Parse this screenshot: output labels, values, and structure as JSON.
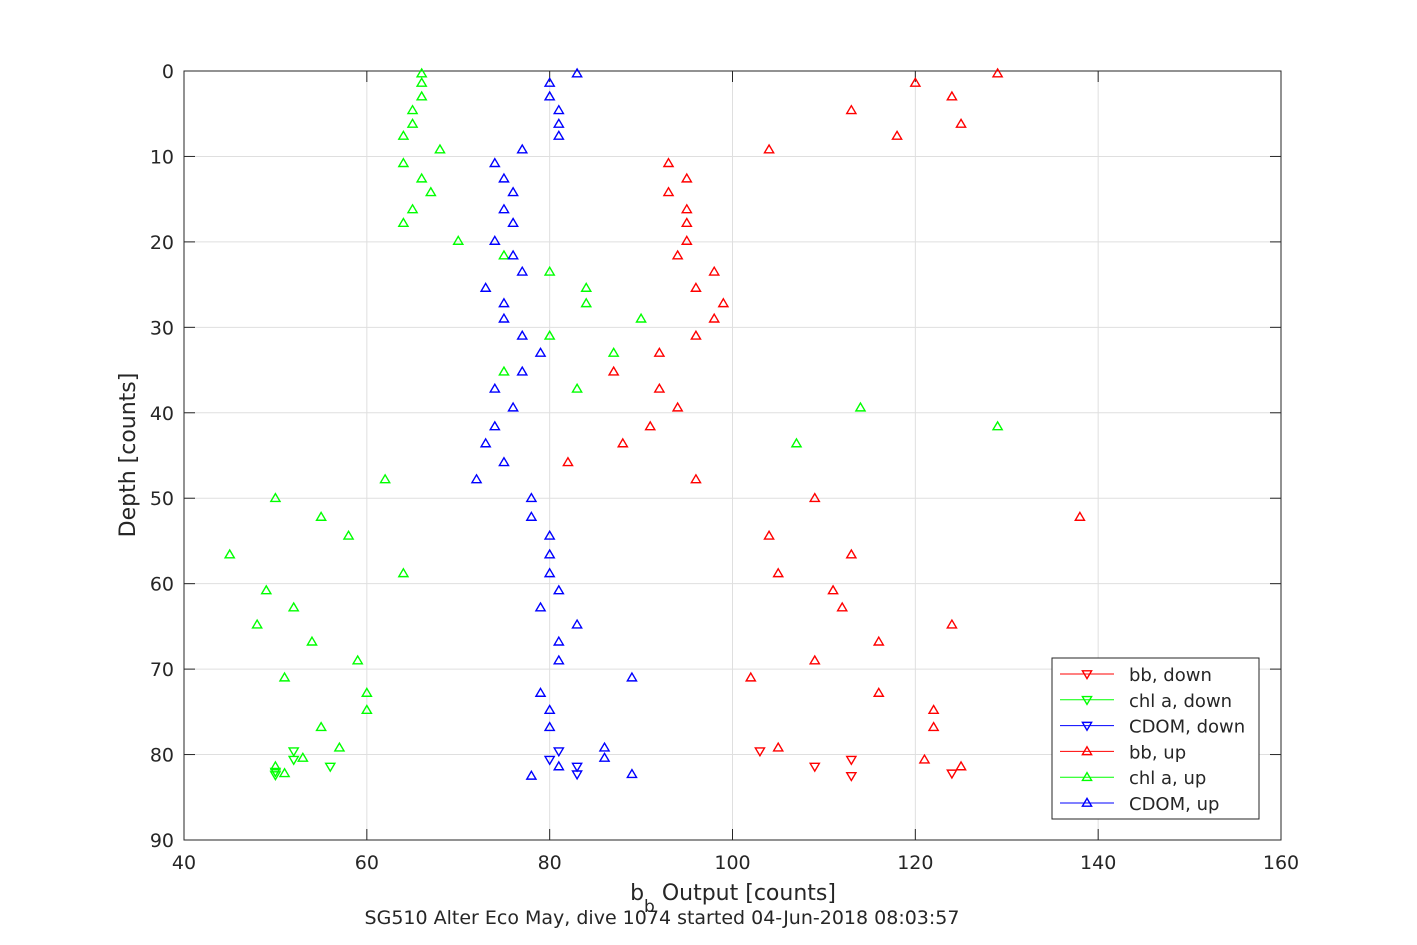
{
  "chart_data": {
    "type": "scatter",
    "xlabel_main": "b",
    "xlabel_sub": "b",
    "xlabel_rest": " Output [counts]",
    "ylabel": "Depth [counts]",
    "caption": "SG510 Alter Eco May, dive 1074 started 04-Jun-2018 08:03:57",
    "xlim": [
      40,
      160
    ],
    "ylim": [
      0,
      90
    ],
    "y_reversed": true,
    "grid": true,
    "legend_position": "bottom-right",
    "x_ticks": [
      "40",
      "60",
      "80",
      "100",
      "120",
      "140",
      "160"
    ],
    "y_ticks": [
      "0",
      "10",
      "20",
      "30",
      "40",
      "50",
      "60",
      "70",
      "80",
      "90"
    ],
    "series": [
      {
        "name": "bb, down",
        "color": "#ff0000",
        "marker": "triangle-down",
        "points": [
          [
            103,
            79.6
          ],
          [
            109,
            81.4
          ],
          [
            113,
            80.6
          ],
          [
            113,
            82.5
          ],
          [
            124,
            82.2
          ]
        ]
      },
      {
        "name": "chl a, down",
        "color": "#00ff00",
        "marker": "triangle-down",
        "points": [
          [
            52,
            79.6
          ],
          [
            52,
            80.6
          ],
          [
            50,
            82.0
          ],
          [
            50,
            82.4
          ],
          [
            56,
            81.4
          ]
        ]
      },
      {
        "name": "CDOM, down",
        "color": "#0000ff",
        "marker": "triangle-down",
        "points": [
          [
            81,
            79.6
          ],
          [
            80,
            80.6
          ],
          [
            83,
            81.4
          ],
          [
            83,
            82.3
          ]
        ]
      },
      {
        "name": "bb, up",
        "color": "#ff0000",
        "marker": "triangle-up",
        "points": [
          [
            129,
            0.3
          ],
          [
            120,
            1.4
          ],
          [
            124,
            3.0
          ],
          [
            113,
            4.6
          ],
          [
            125,
            6.2
          ],
          [
            118,
            7.6
          ],
          [
            104,
            9.2
          ],
          [
            93,
            10.8
          ],
          [
            95,
            12.6
          ],
          [
            93,
            14.2
          ],
          [
            95,
            16.2
          ],
          [
            95,
            17.8
          ],
          [
            95,
            19.9
          ],
          [
            94,
            21.6
          ],
          [
            98,
            23.5
          ],
          [
            96,
            25.4
          ],
          [
            99,
            27.2
          ],
          [
            98,
            29.0
          ],
          [
            96,
            31.0
          ],
          [
            92,
            33.0
          ],
          [
            87,
            35.2
          ],
          [
            92,
            37.2
          ],
          [
            94,
            39.4
          ],
          [
            91,
            41.6
          ],
          [
            88,
            43.6
          ],
          [
            82,
            45.8
          ],
          [
            96,
            47.8
          ],
          [
            109,
            50.0
          ],
          [
            138,
            52.2
          ],
          [
            104,
            54.4
          ],
          [
            113,
            56.6
          ],
          [
            105,
            58.8
          ],
          [
            111,
            60.8
          ],
          [
            112,
            62.8
          ],
          [
            124,
            64.8
          ],
          [
            116,
            66.8
          ],
          [
            109,
            69.0
          ],
          [
            102,
            71.0
          ],
          [
            116,
            72.8
          ],
          [
            122,
            74.8
          ],
          [
            122,
            76.8
          ],
          [
            105,
            79.2
          ],
          [
            121,
            80.6
          ],
          [
            125,
            81.4
          ]
        ]
      },
      {
        "name": "chl a, up",
        "color": "#00ff00",
        "marker": "triangle-up",
        "points": [
          [
            66,
            0.3
          ],
          [
            66,
            1.4
          ],
          [
            66,
            3.0
          ],
          [
            65,
            4.6
          ],
          [
            65,
            6.2
          ],
          [
            64,
            7.6
          ],
          [
            68,
            9.2
          ],
          [
            64,
            10.8
          ],
          [
            66,
            12.6
          ],
          [
            67,
            14.2
          ],
          [
            65,
            16.2
          ],
          [
            64,
            17.8
          ],
          [
            70,
            19.9
          ],
          [
            75,
            21.6
          ],
          [
            80,
            23.5
          ],
          [
            84,
            25.4
          ],
          [
            84,
            27.2
          ],
          [
            90,
            29.0
          ],
          [
            80,
            31.0
          ],
          [
            87,
            33.0
          ],
          [
            75,
            35.2
          ],
          [
            83,
            37.2
          ],
          [
            114,
            39.4
          ],
          [
            129,
            41.6
          ],
          [
            107,
            43.6
          ],
          [
            62,
            47.8
          ],
          [
            50,
            50.0
          ],
          [
            55,
            52.2
          ],
          [
            58,
            54.4
          ],
          [
            45,
            56.6
          ],
          [
            64,
            58.8
          ],
          [
            49,
            60.8
          ],
          [
            52,
            62.8
          ],
          [
            48,
            64.8
          ],
          [
            54,
            66.8
          ],
          [
            59,
            69.0
          ],
          [
            51,
            71.0
          ],
          [
            60,
            72.8
          ],
          [
            60,
            74.8
          ],
          [
            55,
            76.8
          ],
          [
            57,
            79.2
          ],
          [
            53,
            80.4
          ],
          [
            50,
            81.4
          ],
          [
            51,
            82.2
          ]
        ]
      },
      {
        "name": "CDOM, up",
        "color": "#0000ff",
        "marker": "triangle-up",
        "points": [
          [
            83,
            0.3
          ],
          [
            80,
            1.4
          ],
          [
            80,
            3.0
          ],
          [
            81,
            4.6
          ],
          [
            81,
            6.2
          ],
          [
            81,
            7.6
          ],
          [
            77,
            9.2
          ],
          [
            74,
            10.8
          ],
          [
            75,
            12.6
          ],
          [
            76,
            14.2
          ],
          [
            75,
            16.2
          ],
          [
            76,
            17.8
          ],
          [
            74,
            19.9
          ],
          [
            76,
            21.6
          ],
          [
            77,
            23.5
          ],
          [
            73,
            25.4
          ],
          [
            75,
            27.2
          ],
          [
            75,
            29.0
          ],
          [
            77,
            31.0
          ],
          [
            79,
            33.0
          ],
          [
            77,
            35.2
          ],
          [
            74,
            37.2
          ],
          [
            76,
            39.4
          ],
          [
            74,
            41.6
          ],
          [
            73,
            43.6
          ],
          [
            75,
            45.8
          ],
          [
            72,
            47.8
          ],
          [
            78,
            50.0
          ],
          [
            78,
            52.2
          ],
          [
            80,
            54.4
          ],
          [
            80,
            56.6
          ],
          [
            80,
            58.8
          ],
          [
            81,
            60.8
          ],
          [
            79,
            62.8
          ],
          [
            83,
            64.8
          ],
          [
            81,
            66.8
          ],
          [
            81,
            69.0
          ],
          [
            89,
            71.0
          ],
          [
            79,
            72.8
          ],
          [
            80,
            74.8
          ],
          [
            80,
            76.8
          ],
          [
            86,
            79.2
          ],
          [
            86,
            80.4
          ],
          [
            81,
            81.4
          ],
          [
            78,
            82.5
          ],
          [
            89,
            82.3
          ]
        ]
      }
    ]
  }
}
